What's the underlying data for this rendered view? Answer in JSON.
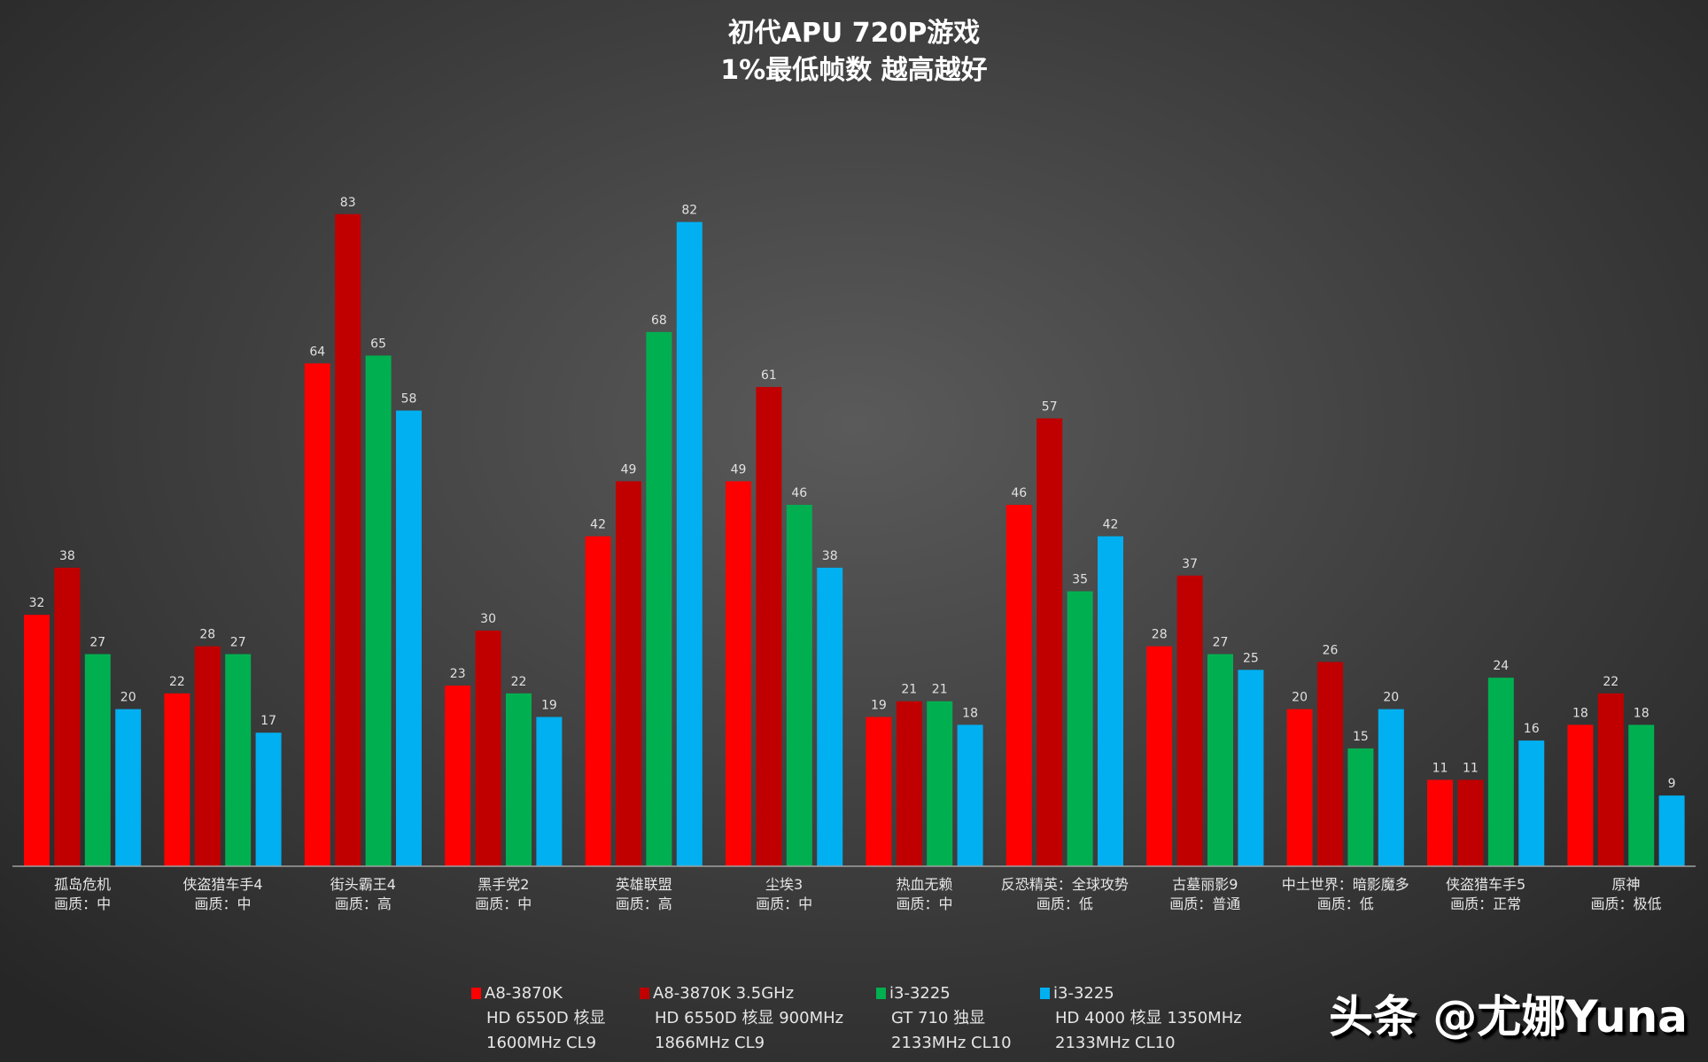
{
  "chart_data": {
    "type": "bar",
    "title": "初代APU  720P游戏",
    "subtitle": "1%最低帧数 越高越好",
    "categories": [
      {
        "name": "孤岛危机",
        "quality": "画质：中"
      },
      {
        "name": "侠盗猎车手4",
        "quality": "画质：中"
      },
      {
        "name": "街头霸王4",
        "quality": "画质：高"
      },
      {
        "name": "黑手党2",
        "quality": "画质：中"
      },
      {
        "name": "英雄联盟",
        "quality": "画质：高"
      },
      {
        "name": "尘埃3",
        "quality": "画质：中"
      },
      {
        "name": "热血无赖",
        "quality": "画质：中"
      },
      {
        "name": "反恐精英：全球攻势",
        "quality": "画质：低"
      },
      {
        "name": "古墓丽影9",
        "quality": "画质：普通"
      },
      {
        "name": "中土世界：暗影魔多",
        "quality": "画质：低"
      },
      {
        "name": "侠盗猎车手5",
        "quality": "画质：正常"
      },
      {
        "name": "原神",
        "quality": "画质：极低"
      }
    ],
    "series": [
      {
        "name": "A8-3870K",
        "lines": [
          "HD 6550D 核显",
          "1600MHz CL9"
        ],
        "color": "#ff0000",
        "values": [
          32,
          22,
          64,
          23,
          42,
          49,
          19,
          46,
          28,
          20,
          11,
          18
        ]
      },
      {
        "name": "A8-3870K 3.5GHz",
        "lines": [
          "HD 6550D 核显 900MHz",
          "1866MHz CL9"
        ],
        "color": "#c00000",
        "values": [
          38,
          28,
          83,
          30,
          49,
          61,
          21,
          57,
          37,
          26,
          11,
          22
        ]
      },
      {
        "name": "i3-3225",
        "lines": [
          "GT 710 独显",
          "2133MHz CL10"
        ],
        "color": "#00b050",
        "values": [
          27,
          27,
          65,
          22,
          68,
          46,
          21,
          35,
          27,
          15,
          24,
          18
        ]
      },
      {
        "name": "i3-3225",
        "lines": [
          "HD 4000 核显 1350MHz",
          "2133MHz CL10"
        ],
        "color": "#00b0f0",
        "values": [
          20,
          17,
          58,
          19,
          82,
          38,
          18,
          42,
          25,
          20,
          16,
          9
        ]
      }
    ],
    "ylim": [
      0,
      90
    ],
    "grid": false,
    "legend_position": "bottom",
    "data_labels": true
  },
  "watermark": "头条 @尤娜Yuna"
}
